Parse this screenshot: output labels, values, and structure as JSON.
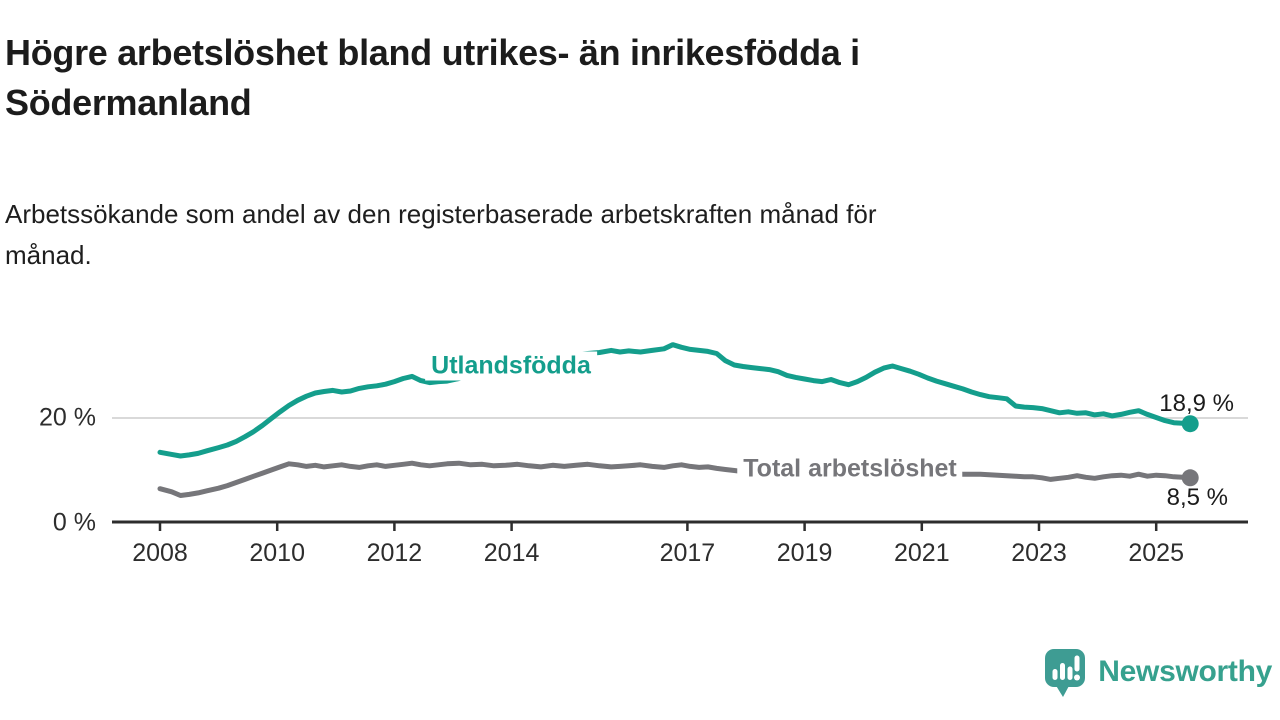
{
  "header": {
    "title_lines": [
      "Högre arbetslöshet bland utrikes- än inrikesfödda i",
      "Södermanland"
    ],
    "subtitle_lines": [
      "Arbetssökande som andel av den registerbaserade arbetskraften månad för",
      "månad."
    ]
  },
  "chart_data": {
    "type": "line",
    "title": "Högre arbetslöshet bland utrikes- än inrikesfödda i Södermanland",
    "subtitle": "Arbetssökande som andel av den registerbaserade arbetskraften månad för månad.",
    "xlabel": "",
    "ylabel": "",
    "x_unit": "year (monthly series)",
    "xlim": [
      2007.9,
      2026.0
    ],
    "ylim": [
      0,
      36
    ],
    "grid": "single horizontal gridline at 20 %",
    "legend_position": "inline labels on lines",
    "y_axis": {
      "ticks": [
        {
          "value": 0,
          "label": "0 %"
        },
        {
          "value": 20,
          "label": "20 %"
        }
      ]
    },
    "x_ticks": [
      {
        "value": 2008,
        "label": "2008"
      },
      {
        "value": 2010,
        "label": "2010"
      },
      {
        "value": 2012,
        "label": "2012"
      },
      {
        "value": 2014,
        "label": "2014"
      },
      {
        "value": 2017,
        "label": "2017"
      },
      {
        "value": 2019,
        "label": "2019"
      },
      {
        "value": 2021,
        "label": "2021"
      },
      {
        "value": 2023,
        "label": "2023"
      },
      {
        "value": 2025,
        "label": "2025"
      }
    ],
    "x": [
      2008.0,
      2008.2,
      2008.35,
      2008.5,
      2008.65,
      2008.8,
      2009.0,
      2009.15,
      2009.3,
      2009.45,
      2009.6,
      2009.75,
      2009.9,
      2010.05,
      2010.2,
      2010.35,
      2010.5,
      2010.65,
      2010.8,
      2010.95,
      2011.1,
      2011.25,
      2011.4,
      2011.55,
      2011.7,
      2011.85,
      2012.0,
      2012.15,
      2012.3,
      2012.45,
      2012.6,
      2012.75,
      2012.9,
      2013.1,
      2013.3,
      2013.5,
      2013.7,
      2013.9,
      2014.1,
      2014.3,
      2014.5,
      2014.7,
      2014.9,
      2015.1,
      2015.3,
      2015.5,
      2015.7,
      2015.85,
      2016.0,
      2016.2,
      2016.4,
      2016.6,
      2016.75,
      2016.9,
      2017.05,
      2017.2,
      2017.35,
      2017.5,
      2017.65,
      2017.8,
      2017.95,
      2018.1,
      2018.25,
      2018.4,
      2018.55,
      2018.7,
      2018.85,
      2019.0,
      2019.15,
      2019.3,
      2019.45,
      2019.6,
      2019.75,
      2019.9,
      2020.05,
      2020.2,
      2020.35,
      2020.5,
      2020.65,
      2020.8,
      2020.95,
      2021.1,
      2021.25,
      2021.4,
      2021.55,
      2021.7,
      2021.85,
      2022.0,
      2022.15,
      2022.3,
      2022.45,
      2022.6,
      2022.75,
      2022.9,
      2023.05,
      2023.2,
      2023.35,
      2023.5,
      2023.65,
      2023.8,
      2023.95,
      2024.1,
      2024.25,
      2024.4,
      2024.55,
      2024.7,
      2024.85,
      2025.0,
      2025.15,
      2025.3,
      2025.45,
      2025.58
    ],
    "series": [
      {
        "name": "Utlandsfödda",
        "inline_label": "Utlandsfödda",
        "end_label": "18,9 %",
        "end_value": 18.9,
        "color": "#149e8c",
        "values": [
          13.4,
          13.0,
          12.7,
          12.9,
          13.2,
          13.7,
          14.3,
          14.8,
          15.5,
          16.4,
          17.4,
          18.6,
          19.9,
          21.2,
          22.4,
          23.4,
          24.2,
          24.8,
          25.1,
          25.3,
          25.0,
          25.2,
          25.7,
          26.0,
          26.2,
          26.5,
          27.0,
          27.6,
          28.0,
          27.2,
          26.8,
          27.0,
          27.1,
          27.6,
          28.2,
          28.8,
          29.3,
          29.8,
          30.3,
          30.7,
          31.1,
          31.5,
          31.9,
          32.2,
          32.4,
          32.6,
          33.0,
          32.7,
          32.9,
          32.7,
          33.0,
          33.3,
          34.1,
          33.6,
          33.2,
          33.0,
          32.8,
          32.4,
          31.0,
          30.2,
          29.9,
          29.7,
          29.5,
          29.3,
          28.9,
          28.2,
          27.8,
          27.5,
          27.2,
          27.0,
          27.4,
          26.8,
          26.4,
          27.0,
          27.8,
          28.8,
          29.6,
          30.0,
          29.5,
          29.0,
          28.4,
          27.7,
          27.1,
          26.6,
          26.1,
          25.6,
          25.0,
          24.5,
          24.1,
          23.9,
          23.7,
          22.3,
          22.1,
          22.0,
          21.8,
          21.4,
          21.0,
          21.2,
          20.9,
          21.0,
          20.6,
          20.8,
          20.4,
          20.7,
          21.1,
          21.4,
          20.7,
          20.1,
          19.5,
          19.1,
          19.0,
          18.9
        ]
      },
      {
        "name": "Total arbetslöshet",
        "inline_label": "Total arbetslöshet",
        "end_label": "8,5 %",
        "end_value": 8.5,
        "color": "#76767a",
        "values": [
          6.4,
          5.8,
          5.1,
          5.3,
          5.6,
          6.0,
          6.5,
          7.0,
          7.6,
          8.2,
          8.8,
          9.4,
          10.0,
          10.6,
          11.2,
          11.0,
          10.7,
          10.9,
          10.6,
          10.8,
          11.0,
          10.7,
          10.5,
          10.8,
          11.0,
          10.7,
          10.9,
          11.1,
          11.3,
          11.0,
          10.8,
          11.0,
          11.2,
          11.3,
          11.0,
          11.1,
          10.8,
          10.9,
          11.1,
          10.8,
          10.6,
          10.9,
          10.7,
          10.9,
          11.1,
          10.8,
          10.6,
          10.7,
          10.8,
          11.0,
          10.7,
          10.5,
          10.8,
          11.0,
          10.7,
          10.5,
          10.6,
          10.3,
          10.1,
          9.9,
          9.7,
          9.5,
          9.3,
          9.1,
          8.9,
          8.8,
          8.7,
          8.7,
          8.6,
          8.7,
          8.6,
          8.5,
          8.6,
          8.8,
          9.2,
          9.9,
          10.4,
          10.7,
          10.5,
          10.3,
          10.0,
          9.8,
          9.6,
          9.4,
          9.3,
          9.2,
          9.2,
          9.2,
          9.1,
          9.0,
          8.9,
          8.8,
          8.7,
          8.7,
          8.5,
          8.2,
          8.4,
          8.6,
          8.9,
          8.6,
          8.4,
          8.7,
          8.9,
          9.0,
          8.8,
          9.2,
          8.8,
          9.0,
          8.9,
          8.7,
          8.6,
          8.5
        ]
      }
    ],
    "style": {
      "grid_color": "#d9d9d9",
      "axis_color": "#2d2d2d",
      "text_color": "#1c1c1c"
    }
  },
  "branding": {
    "logo_text": "Newsworthy",
    "logo_icon": "speech-bubble-with-bar-chart-and-exclamation",
    "logo_color": "#36a18e",
    "icon_color": "#3e9c93"
  }
}
